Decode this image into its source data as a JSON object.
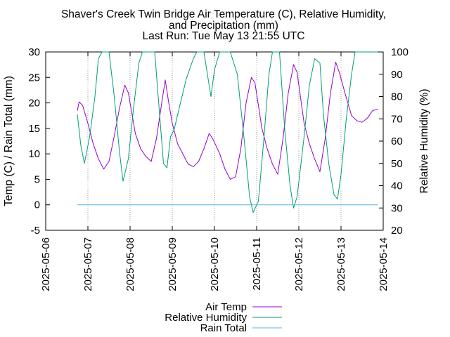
{
  "chart_data": {
    "type": "line",
    "title": "Shaver's Creek Twin Bridge Air Temperature (C), Relative Humidity,",
    "title_line2": "and Precipitation (mm)",
    "subtitle": "Last Run: Tue May 13 21:55 UTC",
    "ylabel": "Temp (C) / Rain Total (mm)",
    "y2label": "Relative Humidity (%)",
    "xlim": [
      "2025-05-06",
      "2025-05-14"
    ],
    "ylim": [
      -5,
      30
    ],
    "y2lim": [
      20,
      100
    ],
    "x_ticks": [
      "2025-05-06",
      "2025-05-07",
      "2025-05-08",
      "2025-05-09",
      "2025-05-10",
      "2025-05-11",
      "2025-05-12",
      "2025-05-13",
      "2025-05-14"
    ],
    "y_ticks": [
      -5,
      0,
      5,
      10,
      15,
      20,
      25,
      30
    ],
    "y2_ticks": [
      20,
      30,
      40,
      50,
      60,
      70,
      80,
      90,
      100
    ],
    "grid": true,
    "legend_placement": "bottom",
    "series": [
      {
        "name": "Air Temp",
        "axis": "y1",
        "color": "#9400d3",
        "points": [
          [
            "2025-05-06 18:00",
            18.5
          ],
          [
            "2025-05-06 19:00",
            20.2
          ],
          [
            "2025-05-06 21:00",
            19.5
          ],
          [
            "2025-05-07 00:00",
            16.0
          ],
          [
            "2025-05-07 03:00",
            12.0
          ],
          [
            "2025-05-07 06:00",
            9.0
          ],
          [
            "2025-05-07 09:00",
            7.0
          ],
          [
            "2025-05-07 12:00",
            8.5
          ],
          [
            "2025-05-07 15:00",
            13.5
          ],
          [
            "2025-05-07 18:00",
            19.0
          ],
          [
            "2025-05-07 21:00",
            23.5
          ],
          [
            "2025-05-07 23:00",
            22.0
          ],
          [
            "2025-05-08 03:00",
            14.0
          ],
          [
            "2025-05-08 06:00",
            11.0
          ],
          [
            "2025-05-08 09:00",
            9.5
          ],
          [
            "2025-05-08 12:00",
            8.5
          ],
          [
            "2025-05-08 15:00",
            13.0
          ],
          [
            "2025-05-08 18:00",
            20.0
          ],
          [
            "2025-05-08 20:00",
            24.5
          ],
          [
            "2025-05-08 22:00",
            20.0
          ],
          [
            "2025-05-09 00:00",
            16.0
          ],
          [
            "2025-05-09 03:00",
            12.0
          ],
          [
            "2025-05-09 06:00",
            10.0
          ],
          [
            "2025-05-09 09:00",
            8.0
          ],
          [
            "2025-05-09 12:00",
            7.5
          ],
          [
            "2025-05-09 15:00",
            8.5
          ],
          [
            "2025-05-09 18:00",
            11.0
          ],
          [
            "2025-05-09 21:00",
            14.0
          ],
          [
            "2025-05-09 23:00",
            13.0
          ],
          [
            "2025-05-10 03:00",
            10.0
          ],
          [
            "2025-05-10 06:00",
            7.0
          ],
          [
            "2025-05-10 09:00",
            5.0
          ],
          [
            "2025-05-10 12:00",
            5.5
          ],
          [
            "2025-05-10 15:00",
            11.0
          ],
          [
            "2025-05-10 18:00",
            20.0
          ],
          [
            "2025-05-10 21:00",
            25.0
          ],
          [
            "2025-05-10 23:00",
            24.0
          ],
          [
            "2025-05-11 03:00",
            15.0
          ],
          [
            "2025-05-11 06:00",
            11.0
          ],
          [
            "2025-05-11 09:00",
            8.0
          ],
          [
            "2025-05-11 12:00",
            6.0
          ],
          [
            "2025-05-11 15:00",
            13.0
          ],
          [
            "2025-05-11 18:00",
            22.0
          ],
          [
            "2025-05-11 21:00",
            27.5
          ],
          [
            "2025-05-11 23:00",
            26.0
          ],
          [
            "2025-05-12 03:00",
            16.0
          ],
          [
            "2025-05-12 06:00",
            12.0
          ],
          [
            "2025-05-12 09:00",
            9.0
          ],
          [
            "2025-05-12 12:00",
            6.5
          ],
          [
            "2025-05-12 15:00",
            13.0
          ],
          [
            "2025-05-12 18:00",
            22.0
          ],
          [
            "2025-05-12 21:00",
            28.0
          ],
          [
            "2025-05-12 23:00",
            26.0
          ],
          [
            "2025-05-13 03:00",
            21.0
          ],
          [
            "2025-05-13 06:00",
            17.5
          ],
          [
            "2025-05-13 09:00",
            16.5
          ],
          [
            "2025-05-13 12:00",
            16.2
          ],
          [
            "2025-05-13 15:00",
            17.0
          ],
          [
            "2025-05-13 18:00",
            18.5
          ],
          [
            "2025-05-13 21:00",
            18.8
          ]
        ]
      },
      {
        "name": "Relative Humidity",
        "axis": "y2",
        "color": "#009e73",
        "points": [
          [
            "2025-05-06 18:00",
            72.0
          ],
          [
            "2025-05-06 20:00",
            58.0
          ],
          [
            "2025-05-06 22:00",
            50.0
          ],
          [
            "2025-05-07 01:00",
            62.0
          ],
          [
            "2025-05-07 04:00",
            80.0
          ],
          [
            "2025-05-07 06:00",
            97.0
          ],
          [
            "2025-05-07 08:00",
            100.0
          ],
          [
            "2025-05-07 12:00",
            100.0
          ],
          [
            "2025-05-07 15:00",
            80.0
          ],
          [
            "2025-05-07 18:00",
            55.0
          ],
          [
            "2025-05-07 20:00",
            42.0
          ],
          [
            "2025-05-07 23:00",
            52.0
          ],
          [
            "2025-05-08 02:00",
            75.0
          ],
          [
            "2025-05-08 05:00",
            95.0
          ],
          [
            "2025-05-08 07:00",
            100.0
          ],
          [
            "2025-05-08 14:00",
            100.0
          ],
          [
            "2025-05-08 17:00",
            70.0
          ],
          [
            "2025-05-08 19:00",
            50.0
          ],
          [
            "2025-05-08 21:00",
            48.0
          ],
          [
            "2025-05-08 23:00",
            62.0
          ],
          [
            "2025-05-09 01:00",
            65.0
          ],
          [
            "2025-05-09 04:00",
            75.0
          ],
          [
            "2025-05-09 08:00",
            88.0
          ],
          [
            "2025-05-09 12:00",
            97.0
          ],
          [
            "2025-05-09 14:00",
            100.0
          ],
          [
            "2025-05-09 18:00",
            100.0
          ],
          [
            "2025-05-09 20:00",
            90.0
          ],
          [
            "2025-05-09 22:00",
            80.0
          ],
          [
            "2025-05-10 00:00",
            92.0
          ],
          [
            "2025-05-10 03:00",
            100.0
          ],
          [
            "2025-05-10 09:00",
            100.0
          ],
          [
            "2025-05-10 13:00",
            90.0
          ],
          [
            "2025-05-10 17:00",
            60.0
          ],
          [
            "2025-05-10 20:00",
            35.0
          ],
          [
            "2025-05-10 22:00",
            28.0
          ],
          [
            "2025-05-11 01:00",
            33.0
          ],
          [
            "2025-05-11 04:00",
            60.0
          ],
          [
            "2025-05-11 07:00",
            90.0
          ],
          [
            "2025-05-11 09:00",
            100.0
          ],
          [
            "2025-05-11 13:00",
            100.0
          ],
          [
            "2025-05-11 16:00",
            65.0
          ],
          [
            "2025-05-11 19:00",
            40.0
          ],
          [
            "2025-05-11 21:00",
            30.0
          ],
          [
            "2025-05-11 23:00",
            35.0
          ],
          [
            "2025-05-12 03:00",
            62.0
          ],
          [
            "2025-05-12 06:00",
            85.0
          ],
          [
            "2025-05-12 09:00",
            97.0
          ],
          [
            "2025-05-12 12:00",
            95.0
          ],
          [
            "2025-05-12 14:00",
            72.0
          ],
          [
            "2025-05-12 17:00",
            50.0
          ],
          [
            "2025-05-12 20:00",
            36.0
          ],
          [
            "2025-05-12 22:00",
            34.0
          ],
          [
            "2025-05-13 00:00",
            45.0
          ],
          [
            "2025-05-13 03:00",
            70.0
          ],
          [
            "2025-05-13 06:00",
            90.0
          ],
          [
            "2025-05-13 08:00",
            100.0
          ],
          [
            "2025-05-13 21:00",
            100.0
          ]
        ]
      },
      {
        "name": "Rain Total",
        "axis": "y1",
        "color": "#56b4e9",
        "points": [
          [
            "2025-05-06 18:00",
            0
          ],
          [
            "2025-05-13 21:00",
            0
          ]
        ]
      }
    ]
  }
}
